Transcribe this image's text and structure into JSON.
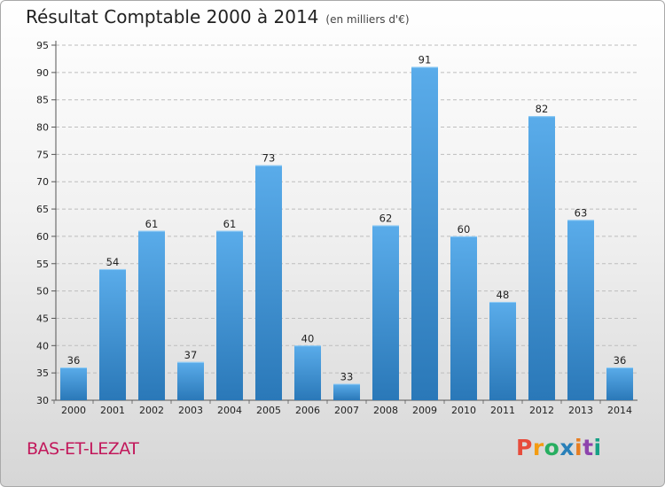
{
  "header": {
    "title": "Résultat Comptable 2000 à 2014",
    "subtitle": "(en milliers d'€)"
  },
  "footer": {
    "commune": "BAS-ET-LEZAT",
    "logo_text": "Proxiti"
  },
  "colors": {
    "bar_top": "#5aacea",
    "bar_bottom": "#2a78b8",
    "commune": "#c2185b",
    "logo": [
      "#e74c3c",
      "#f39c12",
      "#27ae60",
      "#2980b9",
      "#e67e22",
      "#8e44ad",
      "#16a085"
    ]
  },
  "chart_data": {
    "type": "bar",
    "categories": [
      "2000",
      "2001",
      "2002",
      "2003",
      "2004",
      "2005",
      "2006",
      "2007",
      "2008",
      "2009",
      "2010",
      "2011",
      "2012",
      "2013",
      "2014"
    ],
    "values": [
      36,
      54,
      61,
      37,
      61,
      73,
      40,
      33,
      62,
      91,
      60,
      48,
      82,
      63,
      36
    ],
    "title": "Résultat Comptable 2000 à 2014",
    "subtitle": "(en milliers d'€)",
    "ylim": [
      30,
      95
    ],
    "yticks": [
      30,
      35,
      40,
      45,
      50,
      55,
      60,
      65,
      70,
      75,
      80,
      85,
      90,
      95
    ],
    "grid": "horizontal-dashed",
    "data_labels": true
  }
}
